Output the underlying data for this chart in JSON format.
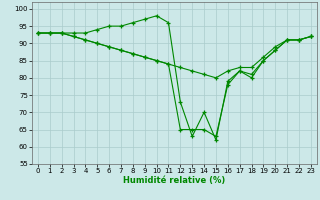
{
  "xlabel": "Humidité relative (%)",
  "background_color": "#cce8e8",
  "grid_color": "#aacccc",
  "line_color": "#008800",
  "xlim": [
    -0.5,
    23.5
  ],
  "ylim": [
    55,
    102
  ],
  "yticks": [
    55,
    60,
    65,
    70,
    75,
    80,
    85,
    90,
    95,
    100
  ],
  "xticks": [
    0,
    1,
    2,
    3,
    4,
    5,
    6,
    7,
    8,
    9,
    10,
    11,
    12,
    13,
    14,
    15,
    16,
    17,
    18,
    19,
    20,
    21,
    22,
    23
  ],
  "series": [
    [
      93,
      93,
      93,
      93,
      93,
      94,
      95,
      95,
      96,
      97,
      98,
      96,
      73,
      63,
      70,
      62,
      79,
      82,
      81,
      85,
      88,
      91,
      91,
      92
    ],
    [
      93,
      93,
      93,
      92,
      91,
      90,
      89,
      88,
      87,
      86,
      85,
      84,
      83,
      82,
      81,
      80,
      82,
      83,
      83,
      86,
      89,
      91,
      91,
      92
    ],
    [
      93,
      93,
      93,
      92,
      91,
      90,
      89,
      88,
      87,
      86,
      85,
      84,
      65,
      65,
      65,
      63,
      78,
      82,
      80,
      85,
      88,
      91,
      91,
      92
    ]
  ],
  "xlabel_fontsize": 6.0,
  "tick_fontsize": 5.0
}
